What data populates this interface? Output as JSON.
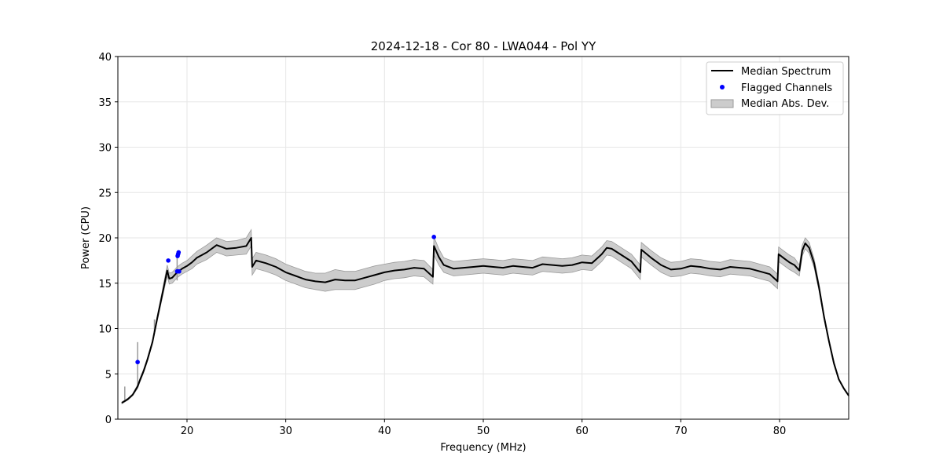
{
  "chart_data": {
    "type": "line",
    "title": "2024-12-18 - Cor 80 - LWA044 - Pol YY",
    "xlabel": "Frequency (MHz)",
    "ylabel": "Power (CPU)",
    "xlim": [
      13,
      87
    ],
    "ylim": [
      0,
      40
    ],
    "xticks": [
      20,
      30,
      40,
      50,
      60,
      70,
      80
    ],
    "yticks": [
      0,
      5,
      10,
      15,
      20,
      25,
      30,
      35,
      40
    ],
    "grid": true,
    "legend_position": "top-right",
    "legend": [
      "Median Spectrum",
      "Flagged Channels",
      "Median Abs. Dev."
    ],
    "colors": {
      "median": "#000000",
      "flagged": "#0000ff",
      "mad_fill": "#cccccc",
      "mad_edge": "#9a9a9a",
      "grid": "#e6e6e6"
    },
    "series": [
      {
        "name": "Median Spectrum",
        "x": [
          13.4,
          14.0,
          14.5,
          15.0,
          15.2,
          15.6,
          16.0,
          16.5,
          17.0,
          17.5,
          18.0,
          18.2,
          18.5,
          19.0,
          19.5,
          20.0,
          20.5,
          21.0,
          22.0,
          23.0,
          23.5,
          24.0,
          25.0,
          26.0,
          26.5,
          26.6,
          27.0,
          28.0,
          29.0,
          30.0,
          31.0,
          32.0,
          33.0,
          34.0,
          35.0,
          36.0,
          37.0,
          38.0,
          39.0,
          40.0,
          41.0,
          42.0,
          43.0,
          44.0,
          44.9,
          45.0,
          45.5,
          46.0,
          47.0,
          48.0,
          49.0,
          50.0,
          51.0,
          52.0,
          53.0,
          54.0,
          55.0,
          56.0,
          57.0,
          58.0,
          59.0,
          60.0,
          61.0,
          62.0,
          62.5,
          63.0,
          64.0,
          65.0,
          65.9,
          66.0,
          67.0,
          68.0,
          69.0,
          70.0,
          71.0,
          72.0,
          73.0,
          74.0,
          75.0,
          76.0,
          77.0,
          78.0,
          79.0,
          79.8,
          79.9,
          80.5,
          81.0,
          81.5,
          82.0,
          82.3,
          82.6,
          83.0,
          83.5,
          84.0,
          84.5,
          85.0,
          85.5,
          86.0,
          86.5,
          87.0
        ],
        "y": [
          1.8,
          2.2,
          2.7,
          3.6,
          4.2,
          5.3,
          6.6,
          8.5,
          11.2,
          13.8,
          16.4,
          15.5,
          15.6,
          16.2,
          16.6,
          16.9,
          17.3,
          17.8,
          18.4,
          19.2,
          19.0,
          18.8,
          18.9,
          19.1,
          20.0,
          16.8,
          17.5,
          17.2,
          16.8,
          16.2,
          15.8,
          15.4,
          15.2,
          15.1,
          15.4,
          15.3,
          15.3,
          15.6,
          15.9,
          16.2,
          16.4,
          16.5,
          16.7,
          16.6,
          15.7,
          19.1,
          17.9,
          17.0,
          16.6,
          16.7,
          16.8,
          16.9,
          16.8,
          16.7,
          16.9,
          16.8,
          16.7,
          17.1,
          17.0,
          16.9,
          17.0,
          17.3,
          17.2,
          18.2,
          18.9,
          18.8,
          18.1,
          17.4,
          16.2,
          18.7,
          17.8,
          17.0,
          16.5,
          16.6,
          16.9,
          16.8,
          16.6,
          16.5,
          16.8,
          16.7,
          16.6,
          16.3,
          16.0,
          15.2,
          18.2,
          17.7,
          17.3,
          17.0,
          16.4,
          18.6,
          19.4,
          18.9,
          17.2,
          14.5,
          11.3,
          8.6,
          6.2,
          4.4,
          3.4,
          2.6
        ]
      },
      {
        "name": "Median Abs. Dev.",
        "x": [
          13.4,
          14.0,
          14.5,
          15.0,
          15.2,
          15.6,
          16.0,
          16.5,
          17.0,
          17.5,
          18.0,
          18.2,
          18.5,
          19.0,
          19.5,
          20.0,
          20.5,
          21.0,
          22.0,
          23.0,
          23.5,
          24.0,
          25.0,
          26.0,
          26.5,
          26.6,
          27.0,
          28.0,
          29.0,
          30.0,
          31.0,
          32.0,
          33.0,
          34.0,
          35.0,
          36.0,
          37.0,
          38.0,
          39.0,
          40.0,
          41.0,
          42.0,
          43.0,
          44.0,
          44.9,
          45.0,
          45.5,
          46.0,
          47.0,
          48.0,
          49.0,
          50.0,
          51.0,
          52.0,
          53.0,
          54.0,
          55.0,
          56.0,
          57.0,
          58.0,
          59.0,
          60.0,
          61.0,
          62.0,
          62.5,
          63.0,
          64.0,
          65.0,
          65.9,
          66.0,
          67.0,
          68.0,
          69.0,
          70.0,
          71.0,
          72.0,
          73.0,
          74.0,
          75.0,
          76.0,
          77.0,
          78.0,
          79.0,
          79.8,
          79.9,
          80.5,
          81.0,
          81.5,
          82.0,
          82.3,
          82.6,
          83.0,
          83.5,
          84.0,
          84.5,
          85.0,
          85.5,
          86.0,
          86.5,
          87.0
        ],
        "lower": [
          1.7,
          2.1,
          2.6,
          3.4,
          4.0,
          5.1,
          6.4,
          8.3,
          10.9,
          13.4,
          15.8,
          14.9,
          15.0,
          15.6,
          16.0,
          16.3,
          16.6,
          17.1,
          17.6,
          18.4,
          18.2,
          18.0,
          18.1,
          18.2,
          19.1,
          15.9,
          16.6,
          16.3,
          15.9,
          15.3,
          14.9,
          14.5,
          14.3,
          14.1,
          14.3,
          14.3,
          14.3,
          14.6,
          14.9,
          15.3,
          15.5,
          15.6,
          15.8,
          15.7,
          14.9,
          18.1,
          17.0,
          16.2,
          15.8,
          15.9,
          16.0,
          16.1,
          16.0,
          15.9,
          16.1,
          16.0,
          15.9,
          16.3,
          16.2,
          16.1,
          16.2,
          16.5,
          16.4,
          17.4,
          18.1,
          18.0,
          17.3,
          16.6,
          15.4,
          17.9,
          17.0,
          16.2,
          15.7,
          15.8,
          16.1,
          16.0,
          15.8,
          15.7,
          16.0,
          15.9,
          15.8,
          15.5,
          15.2,
          14.4,
          17.4,
          16.9,
          16.5,
          16.2,
          15.8,
          18.0,
          18.8,
          18.3,
          16.7,
          14.1,
          11.0,
          8.4,
          6.0,
          4.3,
          3.3,
          2.5
        ],
        "upper": [
          1.9,
          2.3,
          2.8,
          3.8,
          4.4,
          5.5,
          6.8,
          8.7,
          11.5,
          14.2,
          17.0,
          16.1,
          16.2,
          16.8,
          17.2,
          17.5,
          18.0,
          18.5,
          19.2,
          20.0,
          19.8,
          19.6,
          19.7,
          20.0,
          20.9,
          17.7,
          18.4,
          18.1,
          17.7,
          17.1,
          16.7,
          16.3,
          16.1,
          16.1,
          16.5,
          16.3,
          16.3,
          16.6,
          16.9,
          17.1,
          17.3,
          17.4,
          17.6,
          17.5,
          16.5,
          20.1,
          18.8,
          17.8,
          17.4,
          17.5,
          17.6,
          17.7,
          17.6,
          17.5,
          17.7,
          17.6,
          17.5,
          17.9,
          17.8,
          17.7,
          17.8,
          18.1,
          18.0,
          19.0,
          19.7,
          19.6,
          18.9,
          18.2,
          17.0,
          19.5,
          18.6,
          17.8,
          17.3,
          17.4,
          17.7,
          17.6,
          17.4,
          17.3,
          17.6,
          17.5,
          17.4,
          17.1,
          16.8,
          16.0,
          19.0,
          18.5,
          18.1,
          17.8,
          17.0,
          19.2,
          20.0,
          19.5,
          17.7,
          14.9,
          11.6,
          8.8,
          6.4,
          4.5,
          3.5,
          2.7
        ]
      }
    ],
    "spikes": [
      {
        "x": 13.7,
        "low": 1.9,
        "high": 3.6
      },
      {
        "x": 15.0,
        "low": 3.6,
        "high": 8.5
      },
      {
        "x": 16.7,
        "low": 9.6,
        "high": 11.0
      },
      {
        "x": 19.0,
        "low": 15.3,
        "high": 18.5
      }
    ],
    "flagged_points": {
      "x": [
        15.0,
        18.1,
        19.0,
        19.05,
        19.1,
        19.15,
        19.2,
        45.0
      ],
      "y": [
        6.3,
        17.5,
        16.3,
        18.0,
        18.2,
        18.4,
        16.3,
        20.1
      ]
    }
  }
}
